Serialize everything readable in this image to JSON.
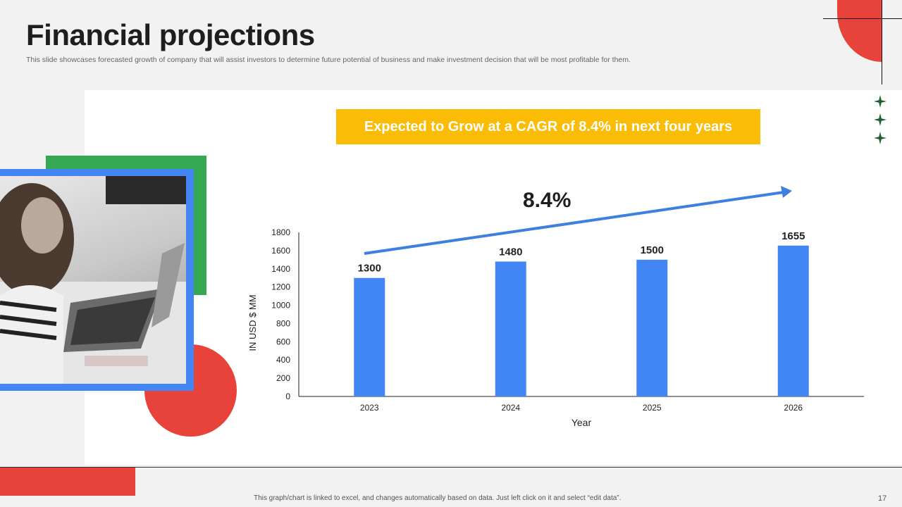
{
  "page": {
    "title": "Financial projections",
    "subtitle": "This slide showcases forecasted growth of company that will assist investors to determine future potential of business and make investment decision that will be most profitable for them.",
    "footer_note": "This graph/chart is linked to excel, and changes automatically based on data. Just left click on it and select “edit data”.",
    "page_number": "17"
  },
  "highlight": {
    "banner": "Expected to Grow at a CAGR of 8.4% in next four years",
    "cagr_label": "8.4%"
  },
  "colors": {
    "bar": "#4285f4",
    "banner": "#fbbc05",
    "red": "#e8433a",
    "green": "#34a853",
    "arrow": "#3f7fe0"
  },
  "icons": [
    "star-icon",
    "star-icon",
    "star-icon"
  ],
  "chart_data": {
    "type": "bar",
    "categories": [
      "2023",
      "2024",
      "2025",
      "2026"
    ],
    "values": [
      1300,
      1480,
      1500,
      1655
    ],
    "data_labels": [
      "1300",
      "1480",
      "1500",
      "1655"
    ],
    "xlabel": "Year",
    "ylabel": "IN USD $ MM",
    "ylim": [
      0,
      1800
    ],
    "yticks": [
      0,
      200,
      400,
      600,
      800,
      1000,
      1200,
      1400,
      1600,
      1800
    ],
    "grid": false
  }
}
